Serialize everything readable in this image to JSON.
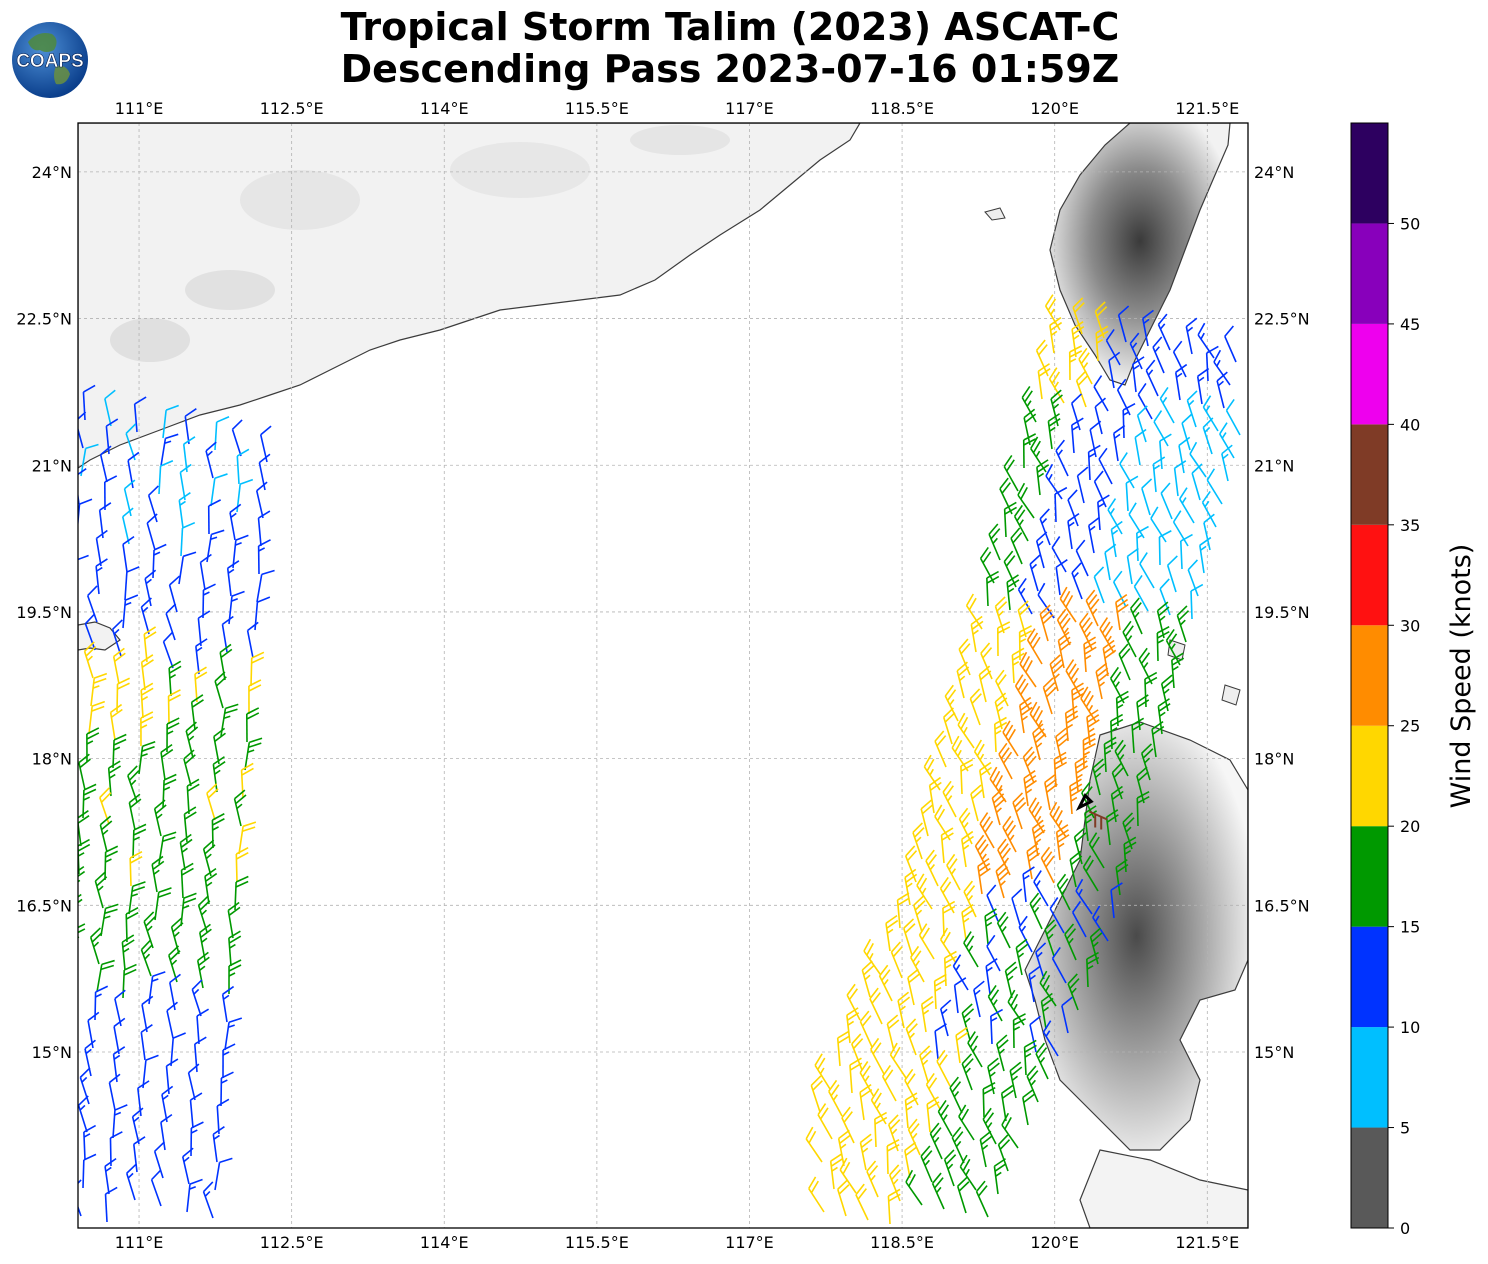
{
  "header": {
    "title_line1": "Tropical Storm Talim (2023) ASCAT-C",
    "title_line2": "Descending Pass 2023-07-16 01:59Z",
    "logo_text": "COAPS"
  },
  "map": {
    "lon_range": [
      110.4,
      121.9
    ],
    "lat_range": [
      13.2,
      24.5
    ],
    "lon_ticks": [
      "111°E",
      "112.5°E",
      "114°E",
      "115.5°E",
      "117°E",
      "118.5°E",
      "120°E",
      "121.5°E"
    ],
    "lon_tick_values": [
      111,
      112.5,
      114,
      115.5,
      117,
      118.5,
      120,
      121.5
    ],
    "lat_ticks": [
      "24°N",
      "22.5°N",
      "21°N",
      "19.5°N",
      "18°N",
      "16.5°N",
      "15°N"
    ],
    "lat_tick_values": [
      24,
      22.5,
      21,
      19.5,
      18,
      16.5,
      15
    ],
    "gridlines": true,
    "storm_center": {
      "lon": 120.3,
      "lat": 17.5
    }
  },
  "colorbar": {
    "title": "Wind Speed (knots)",
    "bounds": [
      0,
      5,
      10,
      15,
      20,
      25,
      30,
      35,
      40,
      45,
      50,
      55
    ],
    "tick_labels": [
      "0",
      "5",
      "10",
      "15",
      "20",
      "25",
      "30",
      "35",
      "40",
      "45",
      "50"
    ],
    "colors": [
      "#595959",
      "#00bfff",
      "#0033ff",
      "#009900",
      "#ffd700",
      "#ff8c00",
      "#ff1111",
      "#7f3b26",
      "#ee00ee",
      "#8800bb",
      "#2d0060"
    ]
  },
  "legend_colors": {
    "land": "#f4f4f4",
    "coast": "#3c3c3c",
    "grid": "#b3b3b3",
    "terrain_dark": "#505050"
  }
}
